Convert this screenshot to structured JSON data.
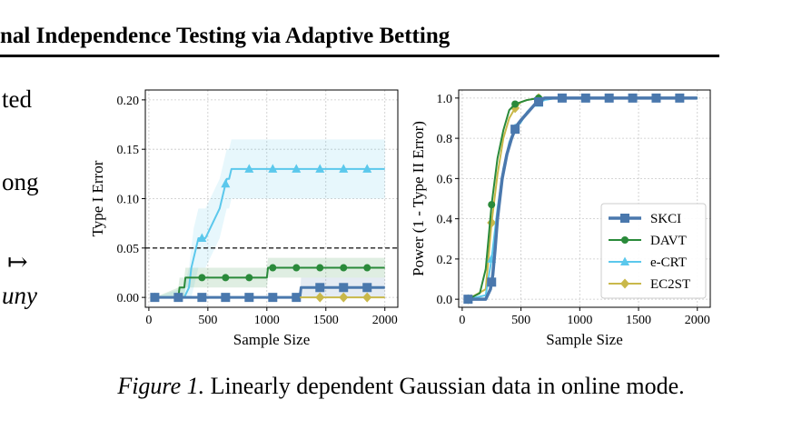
{
  "header": {
    "title": "nal Independence Testing via Adaptive Betting"
  },
  "left_text": {
    "line1": "ted",
    "line2": "ong",
    "symbol": "↦",
    "line4": "uny"
  },
  "caption": {
    "label": "Figure 1.",
    "text": "Linearly dependent Gaussian data in online mode."
  },
  "colors": {
    "SKCI": "#4a78ad",
    "DAVT": "#2a8a3a",
    "e-CRT": "#5bc8ec",
    "EC2ST": "#c9b84a"
  },
  "chart_data": [
    {
      "type": "line",
      "title": "",
      "xlabel": "Sample Size",
      "ylabel": "Type I Error",
      "xlim": [
        -30,
        2110
      ],
      "ylim": [
        -0.01,
        0.21
      ],
      "xticks": [
        0,
        500,
        1000,
        1500,
        2000
      ],
      "yticks": [
        0.0,
        0.05,
        0.1,
        0.15,
        0.2
      ],
      "ytick_labels": [
        "0.00",
        "0.05",
        "0.10",
        "0.15",
        "0.20"
      ],
      "reference_line": {
        "y": 0.05,
        "style": "dashed"
      },
      "grid": true,
      "series": [
        {
          "name": "e-CRT",
          "marker": "triangle",
          "x": [
            50,
            300,
            340,
            360,
            380,
            400,
            420,
            440,
            480,
            520,
            560,
            600,
            640,
            660,
            680,
            700,
            720,
            2000
          ],
          "y": [
            0,
            0,
            0.01,
            0.03,
            0.04,
            0.05,
            0.06,
            0.06,
            0.06,
            0.07,
            0.08,
            0.09,
            0.11,
            0.12,
            0.12,
            0.13,
            0.13,
            0.13
          ],
          "band_lower": [
            0,
            0,
            0,
            0,
            0.01,
            0.02,
            0.03,
            0.03,
            0.03,
            0.04,
            0.05,
            0.06,
            0.08,
            0.09,
            0.09,
            0.1,
            0.1,
            0.1
          ],
          "band_upper": [
            0,
            0.01,
            0.03,
            0.05,
            0.07,
            0.08,
            0.09,
            0.09,
            0.09,
            0.1,
            0.11,
            0.12,
            0.14,
            0.15,
            0.15,
            0.16,
            0.16,
            0.16
          ],
          "marker_x": [
            50,
            250,
            450,
            650,
            850,
            1050,
            1250,
            1450,
            1650,
            1850
          ]
        },
        {
          "name": "DAVT",
          "marker": "circle",
          "x": [
            50,
            250,
            260,
            300,
            310,
            1000,
            1010,
            2000
          ],
          "y": [
            0,
            0,
            0.01,
            0.01,
            0.02,
            0.02,
            0.03,
            0.03
          ],
          "band_lower": [
            0,
            0,
            0,
            0,
            0.01,
            0.01,
            0.02,
            0.02
          ],
          "band_upper": [
            0,
            0.01,
            0.02,
            0.02,
            0.03,
            0.03,
            0.04,
            0.04
          ],
          "marker_x": [
            50,
            250,
            450,
            650,
            850,
            1050,
            1250,
            1450,
            1650,
            1850
          ]
        },
        {
          "name": "SKCI",
          "marker": "square",
          "x": [
            50,
            1280,
            1290,
            2000
          ],
          "y": [
            0,
            0,
            0.01,
            0.01
          ],
          "band_lower": [
            0,
            0,
            0,
            0
          ],
          "band_upper": [
            0,
            0,
            0.02,
            0.02
          ],
          "marker_x": [
            50,
            250,
            450,
            650,
            850,
            1050,
            1250,
            1450,
            1650,
            1850
          ]
        },
        {
          "name": "EC2ST",
          "marker": "diamond",
          "x": [
            1280,
            2000
          ],
          "y": [
            0,
            0
          ],
          "marker_x": [
            1450,
            1650,
            1850
          ]
        }
      ]
    },
    {
      "type": "line",
      "title": "",
      "xlabel": "Sample Size",
      "ylabel": "Power (1 - Type II Error)",
      "xlim": [
        -30,
        2110
      ],
      "ylim": [
        -0.04,
        1.04
      ],
      "xticks": [
        0,
        500,
        1000,
        1500,
        2000
      ],
      "yticks": [
        0.0,
        0.2,
        0.4,
        0.6,
        0.8,
        1.0
      ],
      "ytick_labels": [
        "0.0",
        "0.2",
        "0.4",
        "0.6",
        "0.8",
        "1.0"
      ],
      "grid": true,
      "legend": {
        "location": "lower-right",
        "entries": [
          "SKCI",
          "DAVT",
          "e-CRT",
          "EC2ST"
        ]
      },
      "series": [
        {
          "name": "SKCI",
          "marker": "square",
          "x": [
            50,
            200,
            240,
            260,
            280,
            300,
            340,
            380,
            420,
            460,
            500,
            560,
            620,
            700,
            850,
            2000
          ],
          "y": [
            0,
            0,
            0.05,
            0.12,
            0.25,
            0.4,
            0.6,
            0.72,
            0.8,
            0.86,
            0.89,
            0.93,
            0.97,
            1.0,
            1.0,
            1.0
          ],
          "marker_x": [
            50,
            250,
            450,
            650,
            850,
            1050,
            1250,
            1450,
            1650,
            1850
          ]
        },
        {
          "name": "DAVT",
          "marker": "circle",
          "x": [
            50,
            150,
            200,
            250,
            300,
            350,
            400,
            450,
            500,
            550,
            650,
            2000
          ],
          "y": [
            0,
            0.03,
            0.15,
            0.47,
            0.7,
            0.84,
            0.94,
            0.97,
            0.98,
            0.99,
            1.0,
            1.0
          ],
          "marker_x": [
            50,
            250,
            450,
            650
          ]
        },
        {
          "name": "e-CRT",
          "marker": "triangle",
          "x": [
            50,
            200,
            250,
            300,
            350,
            400,
            450,
            500,
            550,
            600,
            700,
            800,
            2000
          ],
          "y": [
            0,
            0.02,
            0.2,
            0.45,
            0.65,
            0.78,
            0.85,
            0.88,
            0.93,
            0.96,
            0.99,
            1.0,
            1.0
          ],
          "marker_x": [
            50,
            250,
            450,
            650
          ]
        },
        {
          "name": "EC2ST",
          "marker": "diamond",
          "x": [
            50,
            200,
            250,
            300,
            350,
            400,
            450,
            500,
            550,
            650,
            2000
          ],
          "y": [
            0,
            0.05,
            0.38,
            0.62,
            0.8,
            0.9,
            0.95,
            0.98,
            0.99,
            1.0,
            1.0
          ],
          "marker_x": [
            50,
            250,
            450,
            650
          ]
        }
      ]
    }
  ]
}
